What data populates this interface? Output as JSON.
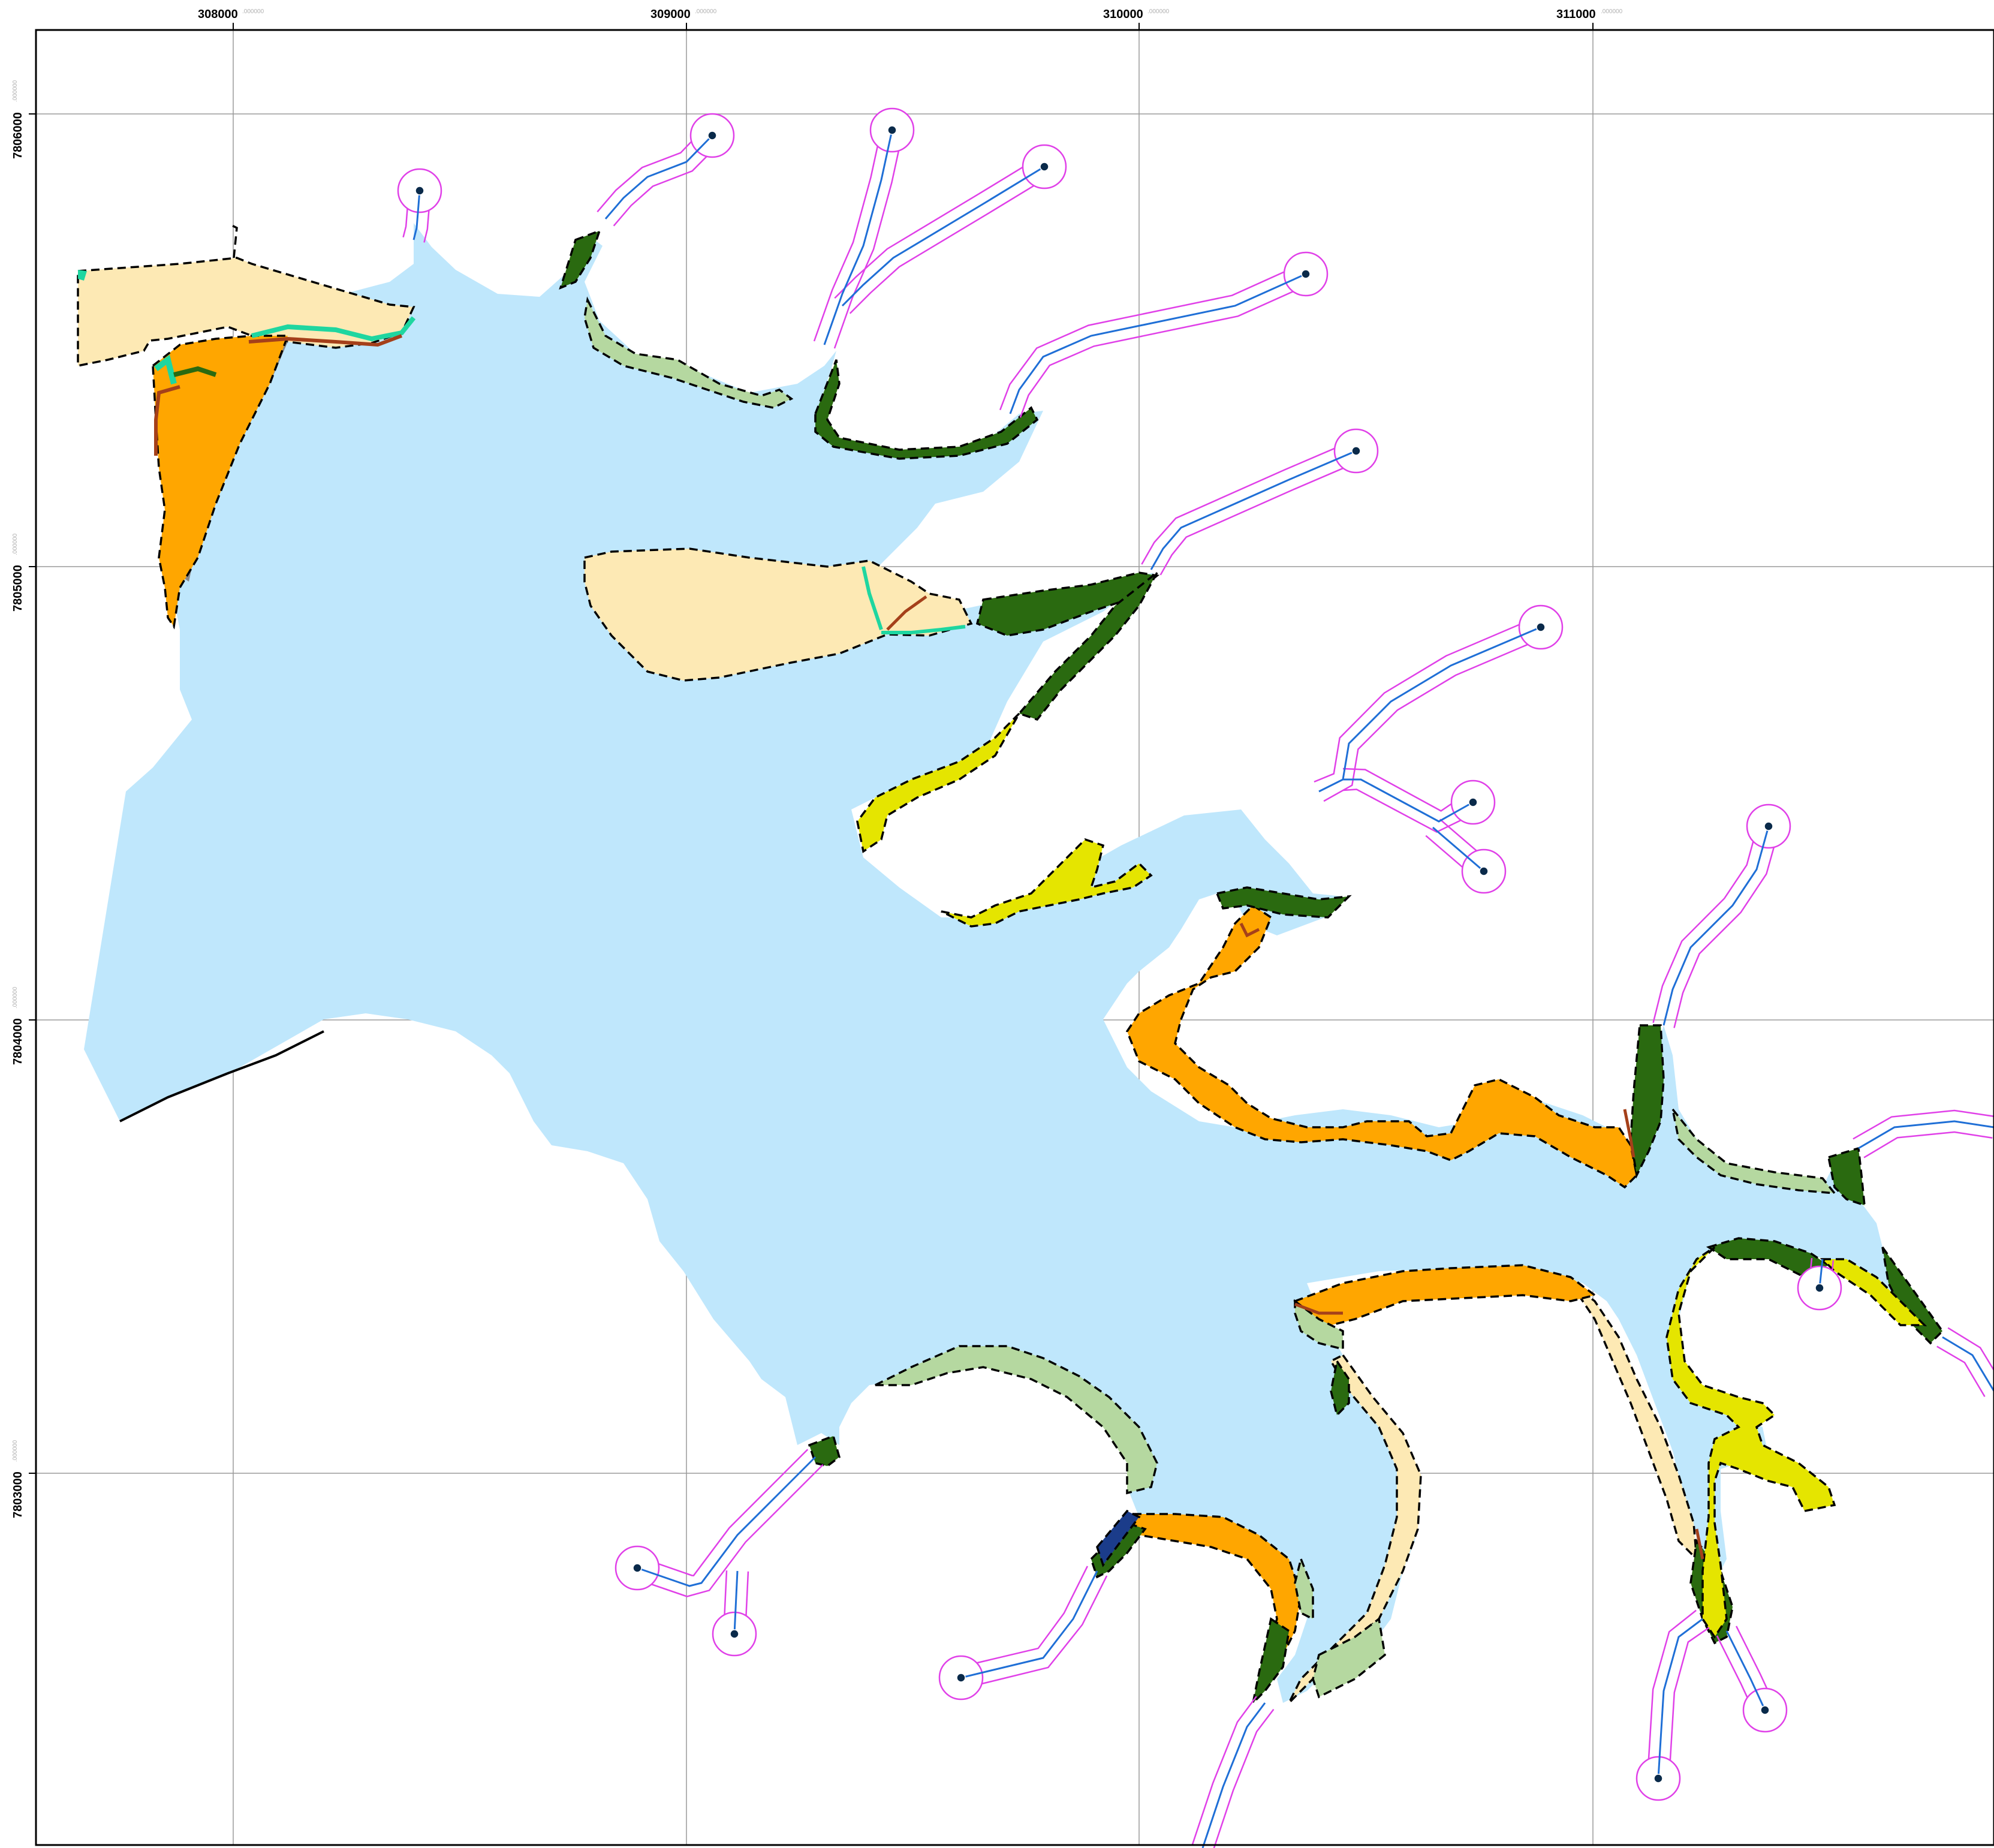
{
  "map": {
    "grid_x_labels": [
      "308000",
      "309000",
      "310000",
      "311000"
    ],
    "grid_y_labels": [
      "7806000",
      "7805000",
      "7804000",
      "7803000"
    ],
    "tick_suffix": ".000000",
    "colors": {
      "water": "#bfe7fc",
      "frame": "#000000",
      "grid": "#9a9a9a",
      "stream": "#1f6fd6",
      "buffer": "#e040e8",
      "endpoint": "#0a2a4a",
      "sand": "#fde9b4",
      "orange_zone": "#ffa600",
      "light_green_zone": "#b5d8a0",
      "dark_green_zone": "#2a6a10",
      "yellow_zone": "#e5e500",
      "gray_zone": "#888888",
      "teal_line": "#1fd6a0",
      "brown_line": "#a5401a",
      "boundary": "#000000"
    }
  }
}
